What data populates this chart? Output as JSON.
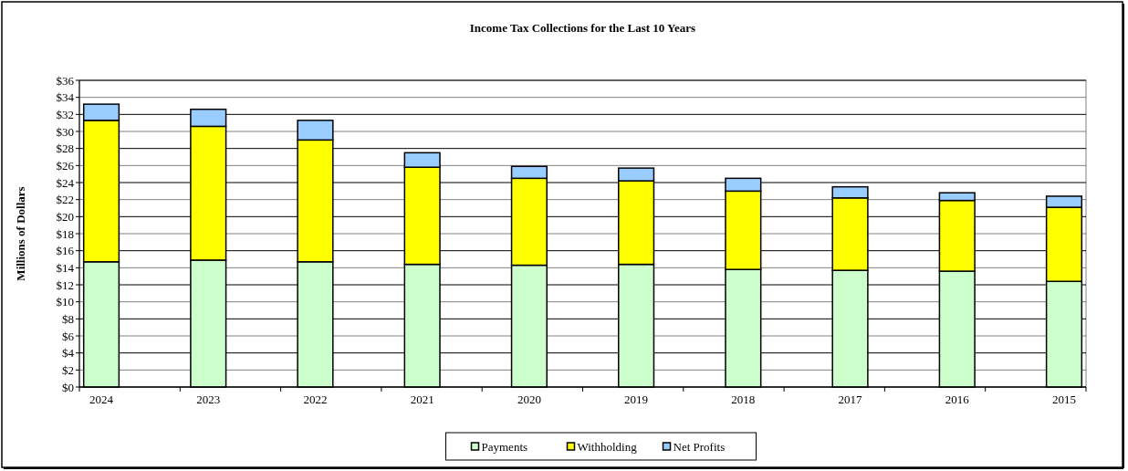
{
  "chart_data": {
    "type": "bar",
    "title": "Income Tax Collections for the Last 10 Years",
    "ylabel": "Millions of Dollars",
    "stacked": true,
    "categories": [
      "2024",
      "2023",
      "2022",
      "2021",
      "2020",
      "2019",
      "2018",
      "2017",
      "2016",
      "2015"
    ],
    "series": [
      {
        "name": "Payments",
        "color": "#ccffcc",
        "values": [
          14.7,
          14.9,
          14.7,
          14.4,
          14.3,
          14.4,
          13.8,
          13.7,
          13.6,
          12.4
        ]
      },
      {
        "name": "Withholding",
        "color": "#ffff00",
        "values": [
          16.6,
          15.7,
          14.3,
          11.4,
          10.2,
          9.8,
          9.2,
          8.5,
          8.3,
          8.7
        ]
      },
      {
        "name": "Net Profits",
        "color": "#99ccff",
        "values": [
          1.9,
          2.0,
          2.3,
          1.7,
          1.4,
          1.5,
          1.5,
          1.3,
          0.9,
          1.3
        ]
      }
    ],
    "ylim": [
      0,
      36
    ],
    "yticks": [
      {
        "value": 0,
        "label": "$0"
      },
      {
        "value": 2,
        "label": "$2"
      },
      {
        "value": 4,
        "label": "$4"
      },
      {
        "value": 6,
        "label": "$6"
      },
      {
        "value": 8,
        "label": "$8"
      },
      {
        "value": 10,
        "label": "$10"
      },
      {
        "value": 12,
        "label": "$12"
      },
      {
        "value": 14,
        "label": "$14"
      },
      {
        "value": 16,
        "label": "$16"
      },
      {
        "value": 18,
        "label": "$18"
      },
      {
        "value": 20,
        "label": "$20"
      },
      {
        "value": 22,
        "label": "$22"
      },
      {
        "value": 24,
        "label": "$24"
      },
      {
        "value": 26,
        "label": "$26"
      },
      {
        "value": 28,
        "label": "$28"
      },
      {
        "value": 30,
        "label": "$30"
      },
      {
        "value": 32,
        "label": "$32"
      },
      {
        "value": 34,
        "label": "$34"
      },
      {
        "value": 36,
        "label": "$36"
      }
    ],
    "grid": "y",
    "legend": "bottom"
  }
}
